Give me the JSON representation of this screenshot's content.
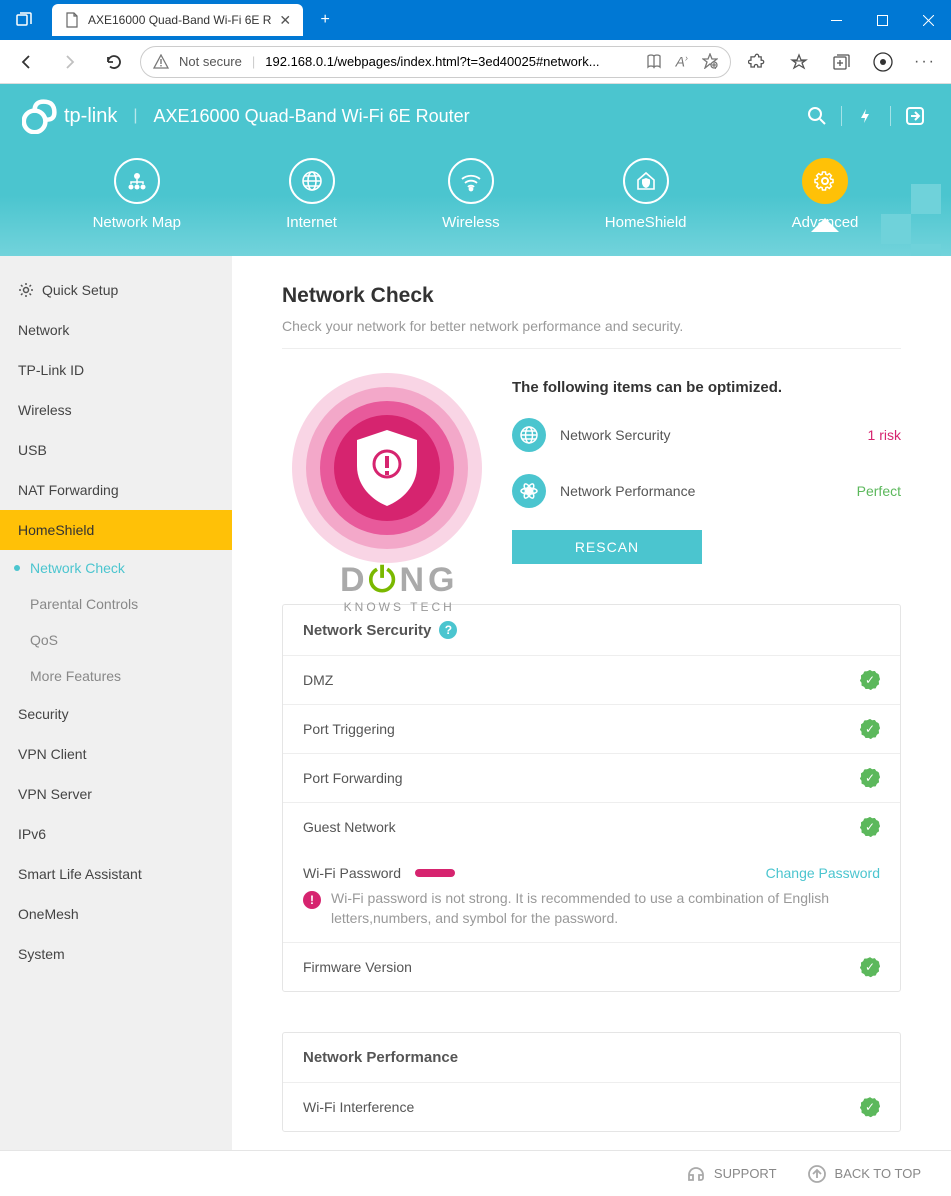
{
  "window": {
    "tab_title": "AXE16000 Quad-Band Wi-Fi 6E R",
    "url_display": "192.168.0.1/webpages/index.html?t=3ed40025#network...",
    "not_secure": "Not secure"
  },
  "header": {
    "brand": "tp-link",
    "product": "AXE16000 Quad-Band Wi-Fi 6E Router"
  },
  "topnav": [
    {
      "label": "Network Map",
      "icon": "sitemap"
    },
    {
      "label": "Internet",
      "icon": "globe"
    },
    {
      "label": "Wireless",
      "icon": "wifi"
    },
    {
      "label": "HomeShield",
      "icon": "home-shield"
    },
    {
      "label": "Advanced",
      "icon": "gear",
      "active": true
    }
  ],
  "sidebar": {
    "items": [
      {
        "label": "Quick Setup",
        "icon": "gear"
      },
      {
        "label": "Network"
      },
      {
        "label": "TP-Link ID"
      },
      {
        "label": "Wireless"
      },
      {
        "label": "USB"
      },
      {
        "label": "NAT Forwarding"
      },
      {
        "label": "HomeShield",
        "active": true
      },
      {
        "label": "Security",
        "after_sub": true
      },
      {
        "label": "VPN Client"
      },
      {
        "label": "VPN Server"
      },
      {
        "label": "IPv6"
      },
      {
        "label": "Smart Life Assistant"
      },
      {
        "label": "OneMesh"
      },
      {
        "label": "System"
      }
    ],
    "subs": [
      {
        "label": "Network Check",
        "on": true
      },
      {
        "label": "Parental Controls"
      },
      {
        "label": "QoS"
      },
      {
        "label": "More Features"
      }
    ]
  },
  "page": {
    "title": "Network Check",
    "subtitle": "Check your network for better network performance and security.",
    "optimize_title": "The following items can be optimized.",
    "rows": [
      {
        "label": "Network Sercurity",
        "value": "1 risk",
        "cls": "risk",
        "icon": "globe"
      },
      {
        "label": "Network Performance",
        "value": "Perfect",
        "cls": "perfect",
        "icon": "atom"
      }
    ],
    "rescan": "RESCAN",
    "watermark1": "DONG",
    "watermark2": "KNOWS TECH"
  },
  "security": {
    "title": "Network Sercurity",
    "items": [
      {
        "label": "DMZ",
        "ok": true
      },
      {
        "label": "Port Triggering",
        "ok": true
      },
      {
        "label": "Port Forwarding",
        "ok": true
      },
      {
        "label": "Guest Network",
        "ok": true
      }
    ],
    "wifi_pw_label": "Wi-Fi Password",
    "change_pw": "Change Password",
    "wifi_warn": "Wi-Fi password is not strong. It is recommended to use a combination of English letters,numbers, and symbol for the password.",
    "firmware": "Firmware Version"
  },
  "perf": {
    "title": "Network Performance",
    "items": [
      {
        "label": "Wi-Fi Interference",
        "ok": true
      }
    ]
  },
  "footer": {
    "support": "SUPPORT",
    "back": "BACK TO TOP"
  },
  "colors": {
    "accent": "#4bc5cf",
    "warn": "#d6246f",
    "ok": "#5cb85c",
    "active": "#ffc107"
  }
}
